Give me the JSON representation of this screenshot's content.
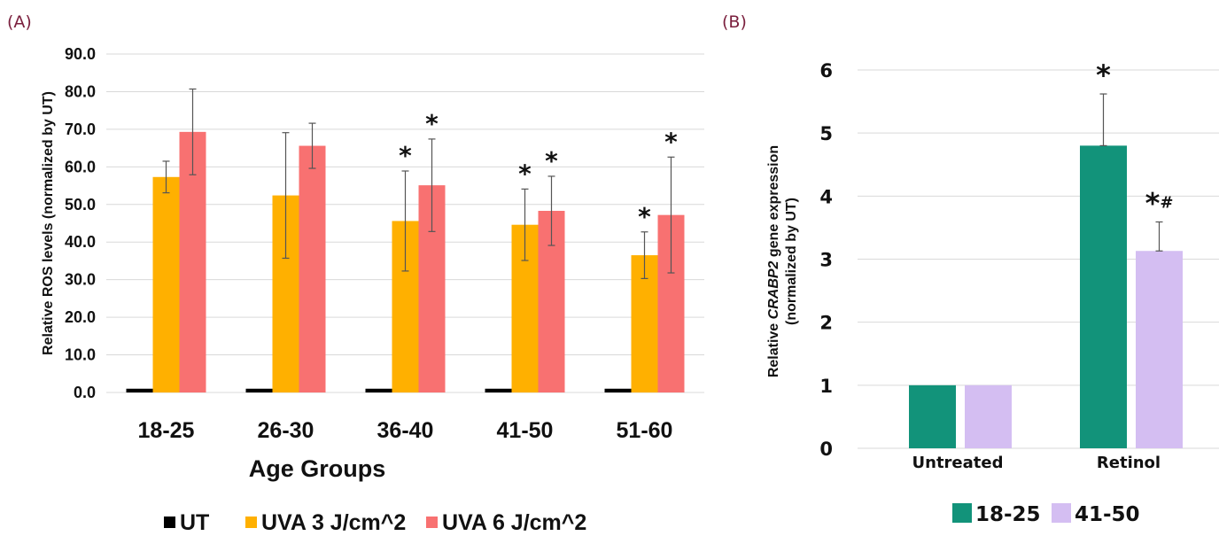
{
  "chart_data": [
    {
      "panel": "(A)",
      "type": "bar",
      "title": "",
      "xlabel": "Age Groups",
      "ylabel": "Relative ROS levels (normalized by UT)",
      "ylim": [
        0,
        90
      ],
      "yticks": [
        "0.0",
        "10.0",
        "20.0",
        "30.0",
        "40.0",
        "50.0",
        "60.0",
        "70.0",
        "80.0",
        "90.0"
      ],
      "grid": true,
      "legend_position": "bottom",
      "categories": [
        "18-25",
        "26-30",
        "36-40",
        "41-50",
        "51-60"
      ],
      "series": [
        {
          "name": "UT",
          "color": "#000000",
          "values": [
            1.0,
            1.0,
            1.0,
            1.0,
            1.0
          ],
          "errors": [
            0,
            0,
            0,
            0,
            0
          ],
          "marks": [
            "",
            "",
            "",
            "",
            ""
          ]
        },
        {
          "name": "UVA 3 J/cm^2",
          "color": "#FFB000",
          "values": [
            57.3,
            52.4,
            45.6,
            44.6,
            36.5
          ],
          "errors": [
            4.2,
            16.7,
            13.3,
            9.5,
            6.2
          ],
          "marks": [
            "",
            "",
            "*",
            "*",
            "*"
          ]
        },
        {
          "name": "UVA 6 J/cm^2",
          "color": "#F87171",
          "values": [
            69.3,
            65.6,
            55.1,
            48.3,
            47.2
          ],
          "errors": [
            11.4,
            6.0,
            12.3,
            9.2,
            15.4
          ],
          "marks": [
            "",
            "",
            "*",
            "*",
            "*"
          ]
        }
      ]
    },
    {
      "panel": "(B)",
      "type": "bar",
      "title": "",
      "xlabel": "",
      "ylabel_parts": [
        "Relative ",
        "CRABP2",
        " gene expression"
      ],
      "ylabel_line2": "(normalized by UT)",
      "ylim": [
        0,
        6
      ],
      "yticks": [
        "0",
        "1",
        "2",
        "3",
        "4",
        "5",
        "6"
      ],
      "grid": true,
      "legend_position": "bottom",
      "categories": [
        "Untreated",
        "Retinol"
      ],
      "series": [
        {
          "name": "18-25",
          "color": "#12937A",
          "values": [
            1.0,
            4.8
          ],
          "errors": [
            0,
            0.82
          ],
          "marks": [
            "",
            "*"
          ]
        },
        {
          "name": "41-50",
          "color": "#D4BEF2",
          "values": [
            1.0,
            3.13
          ],
          "errors": [
            0,
            0.46
          ],
          "marks": [
            "",
            "*#"
          ]
        }
      ]
    }
  ]
}
